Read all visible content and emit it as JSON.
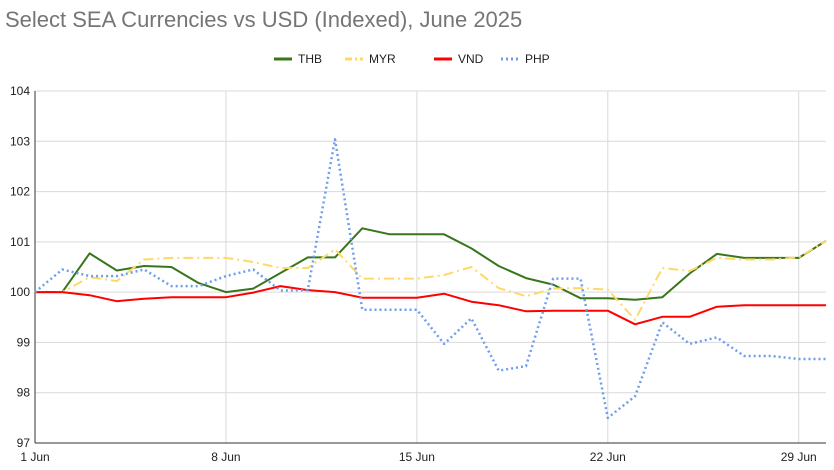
{
  "chart_data": {
    "type": "line",
    "title": "Select SEA Currencies vs USD (Indexed), June 2025",
    "xlabel": "",
    "ylabel": "",
    "x": [
      1,
      2,
      3,
      4,
      5,
      6,
      7,
      8,
      9,
      10,
      11,
      12,
      13,
      14,
      15,
      16,
      17,
      18,
      19,
      20,
      21,
      22,
      23,
      24,
      25,
      26,
      27,
      28,
      29,
      30
    ],
    "x_tick_labels": [
      {
        "day": 1,
        "label": "1 Jun"
      },
      {
        "day": 8,
        "label": "8 Jun"
      },
      {
        "day": 15,
        "label": "15 Jun"
      },
      {
        "day": 22,
        "label": "22 Jun"
      },
      {
        "day": 29,
        "label": "29 Jun"
      }
    ],
    "xlim": [
      1,
      30
    ],
    "ylim": [
      97,
      104
    ],
    "y_ticks": [
      97,
      98,
      99,
      100,
      101,
      102,
      103,
      104
    ],
    "grid": true,
    "legend_position": "top",
    "series": [
      {
        "name": "THB",
        "color": "#38761d",
        "dash": "solid",
        "values": [
          100.0,
          100.0,
          100.77,
          100.43,
          100.52,
          100.5,
          100.18,
          100.0,
          100.07,
          100.38,
          100.69,
          100.69,
          101.27,
          101.15,
          101.15,
          101.15,
          100.87,
          100.52,
          100.28,
          100.15,
          99.88,
          99.88,
          99.85,
          99.9,
          100.37,
          100.76,
          100.68,
          100.68,
          100.68,
          101.02
        ]
      },
      {
        "name": "MYR",
        "color": "#ffd966",
        "dash": "dashdot",
        "values": [
          100.0,
          100.0,
          100.3,
          100.22,
          100.65,
          100.68,
          100.68,
          100.68,
          100.6,
          100.48,
          100.48,
          100.85,
          100.27,
          100.27,
          100.27,
          100.34,
          100.5,
          100.08,
          99.92,
          100.07,
          100.08,
          100.05,
          99.45,
          100.48,
          100.42,
          100.68,
          100.65,
          100.65,
          100.69,
          101.02
        ]
      },
      {
        "name": "VND",
        "color": "#ff0000",
        "dash": "solid",
        "values": [
          100.0,
          100.0,
          99.94,
          99.82,
          99.87,
          99.9,
          99.9,
          99.9,
          99.99,
          100.12,
          100.04,
          100.0,
          99.89,
          99.89,
          99.89,
          99.97,
          99.81,
          99.74,
          99.62,
          99.63,
          99.63,
          99.63,
          99.36,
          99.51,
          99.51,
          99.71,
          99.74,
          99.74,
          99.74,
          99.74
        ]
      },
      {
        "name": "PHP",
        "color": "#6d9eeb",
        "dash": "dotted",
        "values": [
          100.0,
          100.45,
          100.32,
          100.32,
          100.45,
          100.12,
          100.12,
          100.32,
          100.45,
          100.03,
          100.04,
          103.04,
          99.65,
          99.65,
          99.65,
          98.97,
          99.48,
          98.44,
          98.53,
          100.27,
          100.27,
          97.5,
          97.93,
          99.4,
          98.97,
          99.1,
          98.73,
          98.73,
          98.67,
          98.67
        ]
      }
    ]
  }
}
